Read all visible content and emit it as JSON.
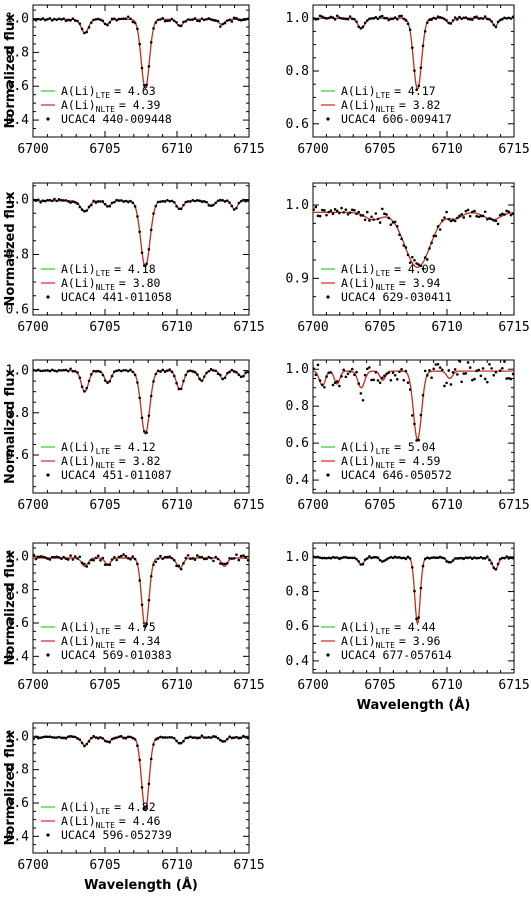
{
  "chart_data": [
    {
      "type": "line",
      "star": "UCAC4 440-009448",
      "xlabel": "",
      "ylabel": "Normalized flux",
      "xlim": [
        6700,
        6715
      ],
      "ylim": [
        0.3,
        1.08
      ],
      "xticks": [
        "6700",
        "6705",
        "6710",
        "6715"
      ],
      "yticks": [
        "0.4",
        "0.6",
        "0.8",
        "1.0"
      ],
      "legend": {
        "lte_label": "A(Li)",
        "lte_sub": "LTE",
        "lte_value": "= 4.63",
        "nlte_label": "A(Li)",
        "nlte_sub": "NLTE",
        "nlte_value": "= 4.39"
      },
      "continuum": 0.995,
      "lines": [
        {
          "c": 6707.8,
          "d": 0.41,
          "w": 0.28
        },
        {
          "c": 6703.6,
          "d": 0.08,
          "w": 0.25
        },
        {
          "c": 6705.1,
          "d": 0.03,
          "w": 0.2
        },
        {
          "c": 6710.2,
          "d": 0.04,
          "w": 0.22
        },
        {
          "c": 6713.1,
          "d": 0.03,
          "w": 0.2
        }
      ],
      "obs_noise": 0.012
    },
    {
      "type": "line",
      "star": "UCAC4 606-009417",
      "xlabel": "",
      "ylabel": "",
      "xlim": [
        6700,
        6715
      ],
      "ylim": [
        0.55,
        1.05
      ],
      "xticks": [
        "6700",
        "6705",
        "6710",
        "6715"
      ],
      "yticks": [
        "0.6",
        "0.8",
        "1.0"
      ],
      "legend": {
        "lte_label": "A(Li)",
        "lte_sub": "LTE",
        "lte_value": "= 4.17",
        "nlte_label": "A(Li)",
        "nlte_sub": "NLTE",
        "nlte_value": "= 3.82"
      },
      "continuum": 1.0,
      "lines": [
        {
          "c": 6707.8,
          "d": 0.27,
          "w": 0.3
        },
        {
          "c": 6703.6,
          "d": 0.04,
          "w": 0.25
        },
        {
          "c": 6710.2,
          "d": 0.02,
          "w": 0.22
        },
        {
          "c": 6713.6,
          "d": 0.03,
          "w": 0.2
        }
      ],
      "obs_noise": 0.008
    },
    {
      "type": "line",
      "star": "UCAC4 441-011058",
      "xlabel": "",
      "ylabel": "Normalized flux",
      "xlim": [
        6700,
        6715
      ],
      "ylim": [
        0.58,
        1.06
      ],
      "xticks": [
        "6700",
        "6705",
        "6710",
        "6715"
      ],
      "yticks": [
        "0.6",
        "0.8",
        "1.0"
      ],
      "legend": {
        "lte_label": "A(Li)",
        "lte_sub": "LTE",
        "lte_value": "= 4.18",
        "nlte_label": "A(Li)",
        "nlte_sub": "NLTE",
        "nlte_value": "= 3.80"
      },
      "continuum": 0.995,
      "lines": [
        {
          "c": 6707.8,
          "d": 0.24,
          "w": 0.32
        },
        {
          "c": 6703.6,
          "d": 0.04,
          "w": 0.28
        },
        {
          "c": 6705.2,
          "d": 0.02,
          "w": 0.22
        },
        {
          "c": 6710.2,
          "d": 0.03,
          "w": 0.22
        },
        {
          "c": 6712.4,
          "d": 0.02,
          "w": 0.2
        },
        {
          "c": 6714.0,
          "d": 0.03,
          "w": 0.2
        }
      ],
      "obs_noise": 0.005
    },
    {
      "type": "line",
      "star": "UCAC4 629-030411",
      "xlabel": "",
      "ylabel": "",
      "xlim": [
        6700,
        6715
      ],
      "ylim": [
        0.85,
        1.03
      ],
      "xticks": [
        "6700",
        "6705",
        "6710",
        "6715"
      ],
      "yticks": [
        "0.9",
        "1.0"
      ],
      "legend": {
        "lte_label": "A(Li)",
        "lte_sub": "LTE",
        "lte_value": "= 4.09",
        "nlte_label": "A(Li)",
        "nlte_sub": "NLTE",
        "nlte_value": "= 3.94"
      },
      "continuum": 0.99,
      "lines": [
        {
          "c": 6707.8,
          "d": 0.075,
          "w": 0.95
        },
        {
          "c": 6704.5,
          "d": 0.01,
          "w": 0.6
        },
        {
          "c": 6710.6,
          "d": 0.008,
          "w": 0.5
        },
        {
          "c": 6713.4,
          "d": 0.01,
          "w": 0.6
        }
      ],
      "obs_noise": 0.008
    },
    {
      "type": "line",
      "star": "UCAC4 451-011087",
      "xlabel": "",
      "ylabel": "Normalized flux",
      "xlim": [
        6700,
        6715
      ],
      "ylim": [
        0.42,
        1.05
      ],
      "xticks": [
        "6700",
        "6705",
        "6710",
        "6715"
      ],
      "yticks": [
        "0.6",
        "0.8",
        "1.0"
      ],
      "legend": {
        "lte_label": "A(Li)",
        "lte_sub": "LTE",
        "lte_value": "= 4.12",
        "nlte_label": "A(Li)",
        "nlte_sub": "NLTE",
        "nlte_value": "= 3.82"
      },
      "continuum": 1.0,
      "lines": [
        {
          "c": 6707.8,
          "d": 0.3,
          "w": 0.3
        },
        {
          "c": 6703.6,
          "d": 0.1,
          "w": 0.25
        },
        {
          "c": 6705.2,
          "d": 0.06,
          "w": 0.22
        },
        {
          "c": 6710.2,
          "d": 0.09,
          "w": 0.24
        },
        {
          "c": 6711.7,
          "d": 0.05,
          "w": 0.2
        },
        {
          "c": 6713.2,
          "d": 0.04,
          "w": 0.2
        },
        {
          "c": 6714.5,
          "d": 0.03,
          "w": 0.2
        }
      ],
      "obs_noise": 0.006
    },
    {
      "type": "line",
      "star": "UCAC4 646-050572",
      "xlabel": "",
      "ylabel": "",
      "xlim": [
        6700,
        6715
      ],
      "ylim": [
        0.33,
        1.05
      ],
      "xticks": [
        "6700",
        "6705",
        "6710",
        "6715"
      ],
      "yticks": [
        "0.4",
        "0.6",
        "0.8",
        "1.0"
      ],
      "legend": {
        "lte_label": "A(Li)",
        "lte_sub": "LTE",
        "lte_value": "= 5.04",
        "nlte_label": "A(Li)",
        "nlte_sub": "NLTE",
        "nlte_value": "= 4.59"
      },
      "continuum": 0.99,
      "lines": [
        {
          "c": 6707.8,
          "d": 0.37,
          "w": 0.3
        },
        {
          "c": 6700.7,
          "d": 0.08,
          "w": 0.22
        },
        {
          "c": 6701.8,
          "d": 0.07,
          "w": 0.2
        },
        {
          "c": 6703.6,
          "d": 0.09,
          "w": 0.25
        },
        {
          "c": 6705.2,
          "d": 0.05,
          "w": 0.2
        },
        {
          "c": 6710.2,
          "d": 0.04,
          "w": 0.22
        }
      ],
      "obs_noise": 0.07
    },
    {
      "type": "line",
      "star": "UCAC4 569-010383",
      "xlabel": "",
      "ylabel": "Normalized flux",
      "xlim": [
        6700,
        6715
      ],
      "ylim": [
        0.3,
        1.08
      ],
      "xticks": [
        "6700",
        "6705",
        "6710",
        "6715"
      ],
      "yticks": [
        "0.4",
        "0.6",
        "0.8",
        "1.0"
      ],
      "legend": {
        "lte_label": "A(Li)",
        "lte_sub": "LTE",
        "lte_value": "= 4.75",
        "nlte_label": "A(Li)",
        "nlte_sub": "NLTE",
        "nlte_value": "= 4.34"
      },
      "continuum": 0.99,
      "lines": [
        {
          "c": 6707.8,
          "d": 0.42,
          "w": 0.25
        },
        {
          "c": 6703.6,
          "d": 0.05,
          "w": 0.22
        },
        {
          "c": 6705.2,
          "d": 0.04,
          "w": 0.2
        },
        {
          "c": 6710.2,
          "d": 0.06,
          "w": 0.22
        },
        {
          "c": 6713.3,
          "d": 0.05,
          "w": 0.2
        }
      ],
      "obs_noise": 0.02
    },
    {
      "type": "line",
      "star": "UCAC4 677-057614",
      "xlabel": "Wavelength (Å)",
      "ylabel": "",
      "xlim": [
        6700,
        6715
      ],
      "ylim": [
        0.33,
        1.08
      ],
      "xticks": [
        "6700",
        "6705",
        "6710",
        "6715"
      ],
      "yticks": [
        "0.4",
        "0.6",
        "0.8",
        "1.0"
      ],
      "legend": {
        "lte_label": "A(Li)",
        "lte_sub": "LTE",
        "lte_value": "= 4.44",
        "nlte_label": "A(Li)",
        "nlte_sub": "NLTE",
        "nlte_value": "= 3.96"
      },
      "continuum": 0.995,
      "lines": [
        {
          "c": 6707.8,
          "d": 0.38,
          "w": 0.2
        },
        {
          "c": 6703.6,
          "d": 0.04,
          "w": 0.2
        },
        {
          "c": 6705.2,
          "d": 0.02,
          "w": 0.2
        },
        {
          "c": 6710.2,
          "d": 0.03,
          "w": 0.2
        },
        {
          "c": 6713.6,
          "d": 0.07,
          "w": 0.2
        }
      ],
      "obs_noise": 0.008
    },
    {
      "type": "line",
      "star": "UCAC4 596-052739",
      "xlabel": "Wavelength (Å)",
      "ylabel": "Normalized flux",
      "xlim": [
        6700,
        6715
      ],
      "ylim": [
        0.3,
        1.08
      ],
      "xticks": [
        "6700",
        "6705",
        "6710",
        "6715"
      ],
      "yticks": [
        "0.4",
        "0.6",
        "0.8",
        "1.0"
      ],
      "legend": {
        "lte_label": "A(Li)",
        "lte_sub": "LTE",
        "lte_value": "= 4.82",
        "nlte_label": "A(Li)",
        "nlte_sub": "NLTE",
        "nlte_value": "= 4.46"
      },
      "continuum": 0.995,
      "lines": [
        {
          "c": 6707.8,
          "d": 0.44,
          "w": 0.26
        },
        {
          "c": 6703.6,
          "d": 0.05,
          "w": 0.22
        },
        {
          "c": 6705.2,
          "d": 0.03,
          "w": 0.2
        },
        {
          "c": 6710.2,
          "d": 0.04,
          "w": 0.22
        },
        {
          "c": 6713.2,
          "d": 0.03,
          "w": 0.2
        }
      ],
      "obs_noise": 0.008
    }
  ],
  "colors": {
    "lte": "#33cc33",
    "nlte": "#dd2222",
    "obs": "#000000",
    "axes": "#000000"
  }
}
